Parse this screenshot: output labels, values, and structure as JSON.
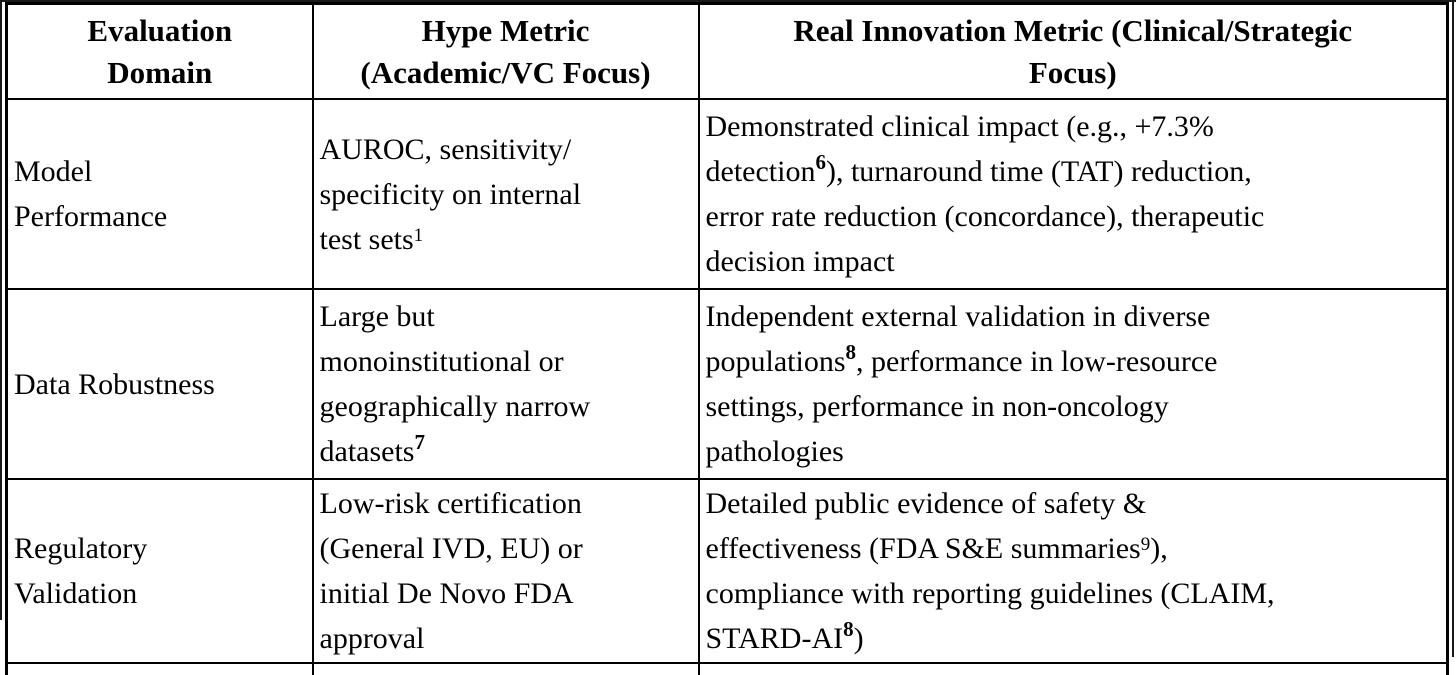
{
  "artifact": {
    "kind": "cropped document table",
    "colors": {
      "text": "#000000",
      "border": "#000000",
      "background": "#ffffff"
    }
  },
  "table": {
    "columns": [
      {
        "label": "Evaluation\nDomain"
      },
      {
        "label": "Hype Metric\n(Academic/VC Focus)"
      },
      {
        "label": "Real Innovation Metric (Clinical/Strategic\nFocus)"
      }
    ],
    "rows": [
      {
        "domain": [
          {
            "t": "Model\nPerformance"
          }
        ],
        "hype": [
          {
            "t": "AUROC, sensitivity/\nspecificity on internal\ntest sets"
          },
          {
            "t": "1",
            "sup": true
          }
        ],
        "real": [
          {
            "t": "Demonstrated clinical impact (e.g., +7.3%\ndetection"
          },
          {
            "t": "6",
            "sup": true,
            "b": true
          },
          {
            "t": "), turnaround time (TAT) reduction,\nerror rate reduction (concordance), therapeutic\ndecision impact"
          }
        ]
      },
      {
        "domain": [
          {
            "t": "Data Robustness"
          }
        ],
        "hype": [
          {
            "t": "Large but\nmonoinstitutional or\ngeographically narrow\ndatasets"
          },
          {
            "t": "7",
            "sup": true,
            "b": true
          }
        ],
        "real": [
          {
            "t": "Independent external validation in diverse\npopulations"
          },
          {
            "t": "8",
            "sup": true,
            "b": true
          },
          {
            "t": ", performance in low-resource\nsettings, performance in non-oncology\npathologies"
          }
        ]
      },
      {
        "domain": [
          {
            "t": "Regulatory\nValidation"
          }
        ],
        "hype": [
          {
            "t": "Low-risk certification\n(General IVD, EU) or\ninitial De Novo FDA\napproval"
          }
        ],
        "real": [
          {
            "t": "Detailed public evidence of safety &\neffectiveness (FDA S&E summaries"
          },
          {
            "t": "9",
            "sup": true
          },
          {
            "t": "),\ncompliance with reporting guidelines (CLAIM,\nSTARD-AI"
          },
          {
            "t": "8",
            "sup": true,
            "b": true
          },
          {
            "t": ")"
          }
        ]
      }
    ]
  }
}
